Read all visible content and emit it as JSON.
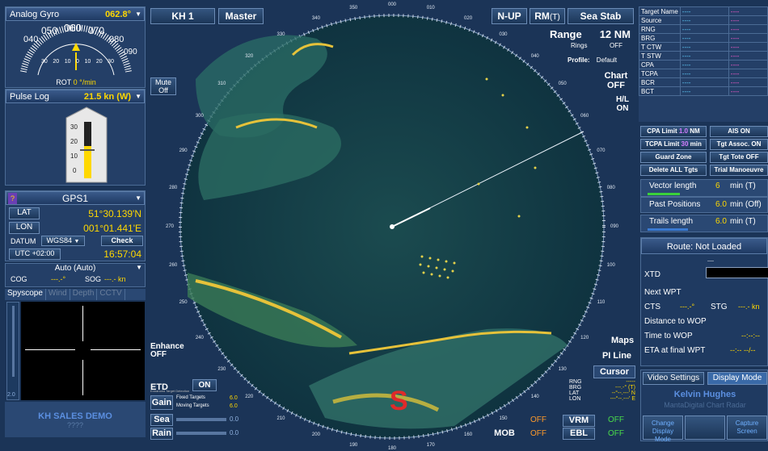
{
  "gyro": {
    "title": "Analog Gyro",
    "value": "062.8°",
    "outer_ticks": [
      "040",
      "050",
      "060",
      "070",
      "080",
      "090"
    ],
    "inner_ticks": [
      "30",
      "20",
      "10",
      "0",
      "10",
      "20",
      "30"
    ],
    "rot_label": "ROT",
    "rot_value": "0 °/min"
  },
  "log": {
    "title": "Pulse Log",
    "value": "21.5 kn (W)",
    "scale": [
      "30",
      "20",
      "10",
      "0"
    ]
  },
  "gps": {
    "q": "?",
    "title": "GPS1",
    "lat_label": "LAT",
    "lat": "51°30.139'N",
    "lon_label": "LON",
    "lon": "001°01.441'E",
    "datum_label": "DATUM",
    "datum": "WGS84",
    "check": "Check",
    "utc": "UTC +02:00",
    "time": "16:57:04"
  },
  "auto": {
    "title": "Auto (Auto)",
    "cog_label": "COG",
    "cog": "---.-°",
    "sog_label": "SOG",
    "sog": "---.- kn"
  },
  "tabs": [
    "Spyscope",
    "Wind",
    "Depth",
    "CCTV"
  ],
  "spyscope": {
    "scale_val": "2.0"
  },
  "demo": {
    "name": "KH SALES DEMO",
    "sub": "????"
  },
  "top": {
    "kh1": "KH 1",
    "master": "Master",
    "nup": "N-UP",
    "rm": "RM",
    "rm_t": "(T)",
    "seastab": "Sea Stab"
  },
  "range": {
    "label": "Range",
    "value": "12 NM",
    "rings_label": "Rings",
    "rings": "OFF",
    "profile_label": "Profile:",
    "profile": "Default"
  },
  "chart": {
    "l1": "Chart",
    "l2": "OFF"
  },
  "hl": {
    "l1": "H/L",
    "l2": "ON"
  },
  "mute": {
    "l1": "Mute",
    "l2": "Off"
  },
  "enhance": {
    "l1": "Enhance",
    "l2": "OFF"
  },
  "bearings": [
    "000",
    "010",
    "020",
    "030",
    "040",
    "050",
    "060",
    "070",
    "080",
    "090",
    "100",
    "110",
    "120",
    "130",
    "140",
    "150",
    "160",
    "170",
    "180",
    "190",
    "200",
    "210",
    "220",
    "230",
    "240",
    "250",
    "260",
    "270",
    "280",
    "290",
    "300",
    "310",
    "320",
    "330",
    "340",
    "350"
  ],
  "etd": {
    "label": "ETD",
    "sub": "Enhanced Target Detection",
    "value": "ON"
  },
  "gain": {
    "label": "Gain",
    "fixed_label": "Fixed Targets",
    "fixed": "6.0",
    "moving_label": "Moving Targets",
    "moving": "6.0"
  },
  "sea": {
    "label": "Sea",
    "value": "0.0"
  },
  "rain": {
    "label": "Rain",
    "value": "0.0"
  },
  "maps": "Maps",
  "piline": "PI Line",
  "cursor": "Cursor",
  "cursor_data": [
    {
      "k": "RNG",
      "v": "-----"
    },
    {
      "k": "BRG",
      "v": "---.-° (T)"
    },
    {
      "k": "LAT",
      "v": "--°--.---' N"
    },
    {
      "k": "LON",
      "v": "---°--.---' E"
    }
  ],
  "mob": "MOB",
  "off1": "OFF",
  "off2": "OFF",
  "vrm": "VRM",
  "ebl": "EBL",
  "vrm_v": "OFF",
  "ebl_v": "OFF",
  "target": {
    "rows": [
      "Target Name",
      "Source",
      "RNG",
      "BRG",
      "T CTW",
      "T STW",
      "CPA",
      "TCPA",
      "BCR",
      "BCT"
    ],
    "dash": "----"
  },
  "limits": {
    "cpa_label": "CPA Limit",
    "cpa": "1.0",
    "cpa_unit": "NM",
    "ais": "AIS ON",
    "tcpa_label": "TCPA Limit",
    "tcpa": "30",
    "tcpa_unit": "min",
    "tgt_assoc": "Tgt Assoc. ON",
    "guard": "Guard Zone",
    "tote": "Tgt Tote OFF",
    "delete": "Delete ALL Tgts",
    "trial": "Trial Manoeuvre"
  },
  "vector": {
    "label": "Vector length",
    "value": "6",
    "unit": "min (T)"
  },
  "past": {
    "label": "Past Positions",
    "value": "6.0",
    "unit": "min (Off)"
  },
  "trails": {
    "label": "Trails length",
    "value": "6.0",
    "unit": "min (T)"
  },
  "route": {
    "title": "Route: Not Loaded",
    "xtd": "XTD",
    "xtd_v": "----",
    "next": "Next WPT",
    "cts": "CTS",
    "cts_v": "---.-°",
    "stg": "STG",
    "stg_v": "---.- kn",
    "dist": "Distance to WOP",
    "time": "Time to WOP",
    "time_v": "--:--:--",
    "eta": "ETA at final WPT",
    "eta_v": "--:-- --/--"
  },
  "video": {
    "vs": "Video Settings",
    "dm": "Display Mode",
    "brand": "Kelvin Hughes",
    "product": "MantaDigital Chart Radar",
    "change1": "Change",
    "change2": "Display Mode",
    "capture1": "Capture",
    "capture2": "Screen"
  }
}
